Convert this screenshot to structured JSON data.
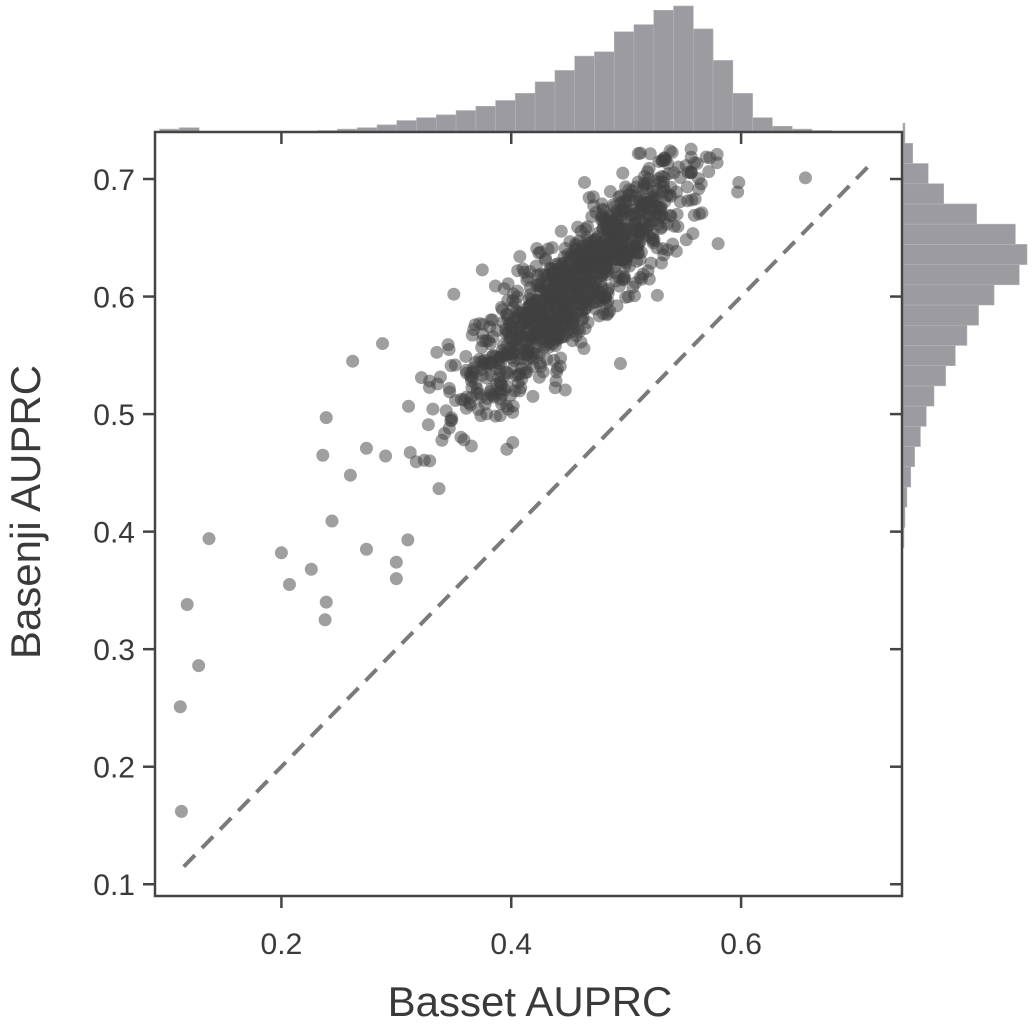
{
  "chart_data": {
    "type": "scatter",
    "title": "",
    "xlabel": "Basset AUPRC",
    "ylabel": "Basenji AUPRC",
    "xlim": [
      0.09,
      0.74
    ],
    "ylim": [
      0.09,
      0.74
    ],
    "x_ticks": [
      0.2,
      0.4,
      0.6
    ],
    "y_ticks": [
      0.1,
      0.2,
      0.3,
      0.4,
      0.5,
      0.6,
      0.7
    ],
    "x_tick_labels": [
      "0.2",
      "0.4",
      "0.6"
    ],
    "y_tick_labels": [
      "0.1",
      "0.2",
      "0.3",
      "0.4",
      "0.5",
      "0.6",
      "0.7"
    ],
    "grid": false,
    "diagonal_line": {
      "from": [
        0.115,
        0.115
      ],
      "to": [
        0.71,
        0.71
      ],
      "style": "dashed"
    },
    "point_color": "#404040",
    "hist_color": "#9c9ca0",
    "axis_color": "#444444",
    "dashed_color": "#7a7a7a",
    "outlier_points": [
      {
        "x": 0.113,
        "y": 0.162
      },
      {
        "x": 0.112,
        "y": 0.251
      },
      {
        "x": 0.128,
        "y": 0.286
      },
      {
        "x": 0.118,
        "y": 0.338
      },
      {
        "x": 0.137,
        "y": 0.394
      },
      {
        "x": 0.2,
        "y": 0.382
      },
      {
        "x": 0.207,
        "y": 0.355
      },
      {
        "x": 0.226,
        "y": 0.368
      },
      {
        "x": 0.238,
        "y": 0.325
      },
      {
        "x": 0.239,
        "y": 0.34
      },
      {
        "x": 0.236,
        "y": 0.465
      },
      {
        "x": 0.239,
        "y": 0.497
      },
      {
        "x": 0.262,
        "y": 0.545
      },
      {
        "x": 0.288,
        "y": 0.56
      },
      {
        "x": 0.3,
        "y": 0.36
      },
      {
        "x": 0.3,
        "y": 0.374
      },
      {
        "x": 0.35,
        "y": 0.602
      },
      {
        "x": 0.656,
        "y": 0.701
      },
      {
        "x": 0.598,
        "y": 0.697
      },
      {
        "x": 0.597,
        "y": 0.689
      },
      {
        "x": 0.52,
        "y": 0.709
      },
      {
        "x": 0.58,
        "y": 0.645
      },
      {
        "x": 0.495,
        "y": 0.543
      },
      {
        "x": 0.26,
        "y": 0.448
      },
      {
        "x": 0.244,
        "y": 0.409
      },
      {
        "x": 0.274,
        "y": 0.385
      },
      {
        "x": 0.31,
        "y": 0.393
      },
      {
        "x": 0.56,
        "y": 0.683
      }
    ],
    "cloud": {
      "count": 1050,
      "x_mean": 0.455,
      "x_sd": 0.052,
      "intercept": 0.19,
      "slope": 0.92,
      "noise_sd": 0.025
    },
    "x_histogram": {
      "bin_start": 0.094,
      "bin_width": 0.0172,
      "heights": [
        0.02,
        0.03,
        0.0,
        0.0,
        0.0,
        0.0,
        0.0,
        0.0,
        0.01,
        0.02,
        0.03,
        0.05,
        0.08,
        0.1,
        0.12,
        0.15,
        0.18,
        0.22,
        0.27,
        0.35,
        0.43,
        0.53,
        0.56,
        0.7,
        0.75,
        0.85,
        0.88,
        0.72,
        0.5,
        0.27,
        0.1,
        0.04,
        0.02,
        0.01,
        0.0,
        0.0,
        0.0,
        0.0
      ]
    },
    "y_histogram": {
      "bin_start": 0.094,
      "bin_width": 0.0172,
      "heights": [
        0.0,
        0.0,
        0.0,
        0.0,
        0.0,
        0.0,
        0.0,
        0.0,
        0.0,
        0.0,
        0.0,
        0.0,
        0.0,
        0.0,
        0.0,
        0.0,
        0.0,
        0.005,
        0.01,
        0.02,
        0.04,
        0.06,
        0.09,
        0.12,
        0.16,
        0.22,
        0.27,
        0.33,
        0.39,
        0.47,
        0.6,
        0.64,
        0.58,
        0.38,
        0.21,
        0.13,
        0.05,
        0.01
      ]
    }
  }
}
